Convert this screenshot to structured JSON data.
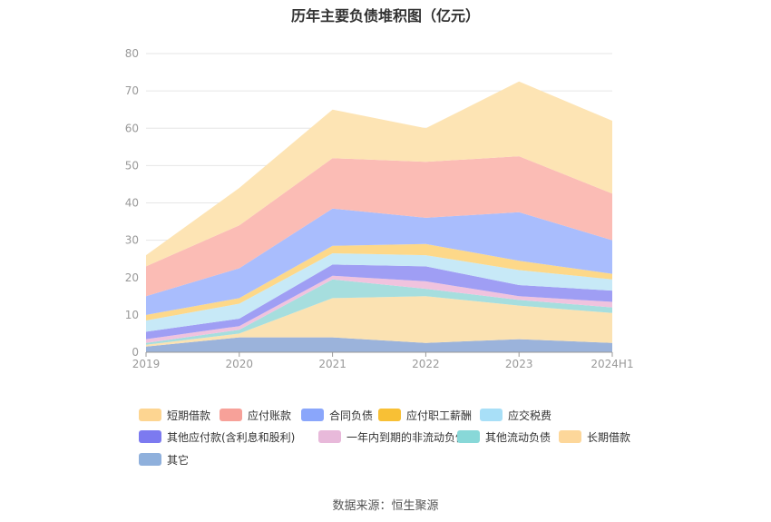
{
  "chart_data": {
    "type": "area",
    "stacked": true,
    "title": "历年主要负债堆积图（亿元）",
    "xlabel": "",
    "ylabel": "",
    "ylim": [
      0,
      80
    ],
    "yticks": [
      0,
      10,
      20,
      30,
      40,
      50,
      60,
      70,
      80
    ],
    "grid": true,
    "legend_position": "bottom",
    "categories": [
      "2019",
      "2020",
      "2021",
      "2022",
      "2023",
      "2024H1"
    ],
    "series": [
      {
        "name": "其它",
        "color": "#9bb3db",
        "values": [
          1.5,
          4.0,
          4.0,
          2.5,
          3.5,
          2.5
        ]
      },
      {
        "name": "长期借款",
        "color": "#fbe2b2",
        "values": [
          0.5,
          1.0,
          10.5,
          12.5,
          9.0,
          8.0
        ]
      },
      {
        "name": "其他流动负债",
        "color": "#a6dede",
        "values": [
          0.5,
          1.0,
          5.0,
          2.0,
          1.5,
          1.5
        ]
      },
      {
        "name": "一年内到期的非流动负债",
        "color": "#f0c3de",
        "values": [
          1.0,
          1.0,
          1.0,
          2.0,
          1.0,
          1.5
        ]
      },
      {
        "name": "其他应付款(含利息和股利)",
        "color": "#9f9ef4",
        "values": [
          2.0,
          2.0,
          3.0,
          4.0,
          3.0,
          3.0
        ]
      },
      {
        "name": "应交税费",
        "color": "#c7e9f7",
        "values": [
          3.0,
          4.0,
          3.0,
          3.0,
          4.0,
          3.0
        ]
      },
      {
        "name": "应付职工薪酬",
        "color": "#fdd889",
        "values": [
          1.5,
          1.5,
          2.0,
          3.0,
          2.5,
          1.5
        ]
      },
      {
        "name": "合同负债",
        "color": "#a9bdfd",
        "values": [
          5.0,
          8.0,
          10.0,
          7.0,
          13.0,
          9.0
        ]
      },
      {
        "name": "应付账款",
        "color": "#fbbcb5",
        "values": [
          8.0,
          11.5,
          13.5,
          15.0,
          15.0,
          12.5
        ]
      },
      {
        "name": "短期借款",
        "color": "#fde4b4",
        "values": [
          3.0,
          10.0,
          13.0,
          9.0,
          20.0,
          19.5
        ]
      }
    ]
  },
  "legend_order": [
    "短期借款",
    "应付账款",
    "合同负债",
    "应付职工薪酬",
    "应交税费",
    "其他应付款(含利息和股利)",
    "一年内到期的非流动负债",
    "其他流动负债",
    "长期借款",
    "其它"
  ],
  "legend_colors": {
    "短期借款": "#fdd591",
    "应付账款": "#f7a199",
    "合同负债": "#8aa6fb",
    "应付职工薪酬": "#f8c035",
    "应交税费": "#a8dff7",
    "其他应付款(含利息和股利)": "#7c7af0",
    "一年内到期的非流动负债": "#e8b9da",
    "其他流动负债": "#88d8d8",
    "长期借款": "#fdd79a",
    "其它": "#8fb0dc"
  },
  "axis_color": "#999999",
  "grid_color": "#e6e6e6",
  "source": "数据来源：恒生聚源"
}
